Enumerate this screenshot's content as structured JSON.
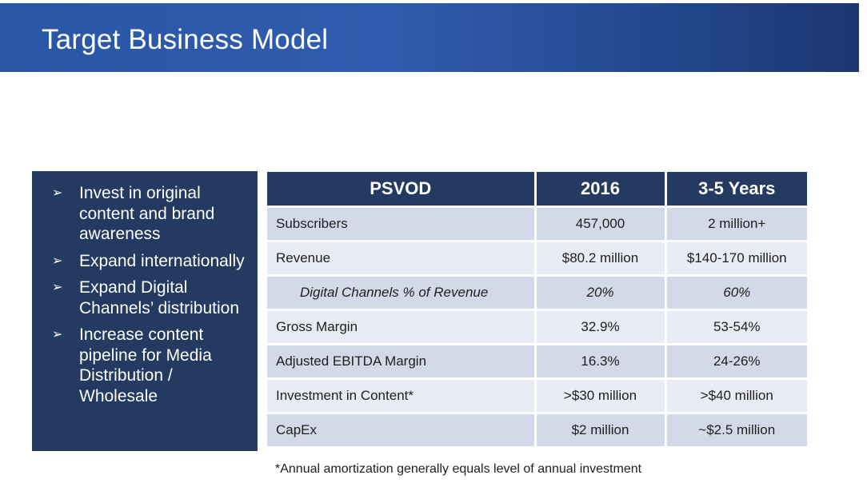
{
  "slide": {
    "title": "Target Business Model"
  },
  "bullets": [
    {
      "arrow": "➢",
      "text": "Invest in original content and brand awareness"
    },
    {
      "arrow": "➢",
      "text": "Expand internationally"
    },
    {
      "arrow": "➢",
      "text": "Expand Digital Channels’ distribution"
    },
    {
      "arrow": "➢",
      "text": "Increase content pipeline for Media Distribution / Wholesale"
    }
  ],
  "table": {
    "headers": [
      "PSVOD",
      "2016",
      "3-5 Years"
    ],
    "rows": [
      {
        "label": "Subscribers",
        "y2016": "457,000",
        "y35": "2 million+"
      },
      {
        "label": "Revenue",
        "y2016": "$80.2 million",
        "y35": "$140-170 million"
      },
      {
        "label": "Digital Channels % of Revenue",
        "y2016": "20%",
        "y35": "60%"
      },
      {
        "label": "Gross Margin",
        "y2016": "32.9%",
        "y35": "53-54%"
      },
      {
        "label": "Adjusted EBITDA Margin",
        "y2016": "16.3%",
        "y35": "24-26%"
      },
      {
        "label": "Investment in Content*",
        "y2016": ">$30 million",
        "y35": ">$40 million"
      },
      {
        "label": "CapEx",
        "y2016": "$2 million",
        "y35": "~$2.5 million"
      }
    ]
  },
  "footnote": "*Annual amortization generally equals level of annual investment",
  "colors": {
    "title_bar": "#2a56a6",
    "panel": "#243a61",
    "row_dark": "#d3d9e8",
    "row_light": "#e9ecf4"
  }
}
